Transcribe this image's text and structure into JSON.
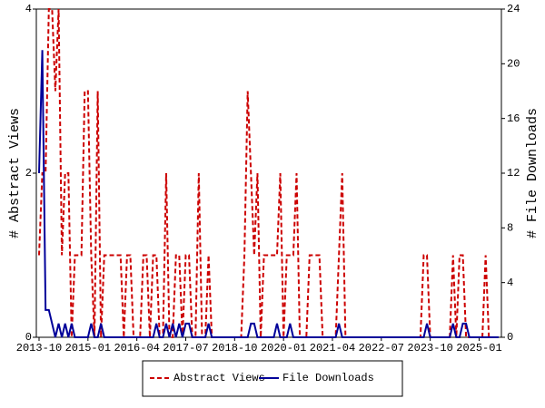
{
  "chart_data": {
    "type": "line",
    "x": [
      "2013-10",
      "2013-11",
      "2013-12",
      "2014-01",
      "2014-02",
      "2014-03",
      "2014-04",
      "2014-05",
      "2014-06",
      "2014-07",
      "2014-08",
      "2014-09",
      "2014-10",
      "2014-11",
      "2014-12",
      "2015-01",
      "2015-02",
      "2015-03",
      "2015-04",
      "2015-05",
      "2015-06",
      "2015-07",
      "2015-08",
      "2015-09",
      "2015-10",
      "2015-11",
      "2015-12",
      "2016-01",
      "2016-02",
      "2016-03",
      "2016-04",
      "2016-05",
      "2016-06",
      "2016-07",
      "2016-08",
      "2016-09",
      "2016-10",
      "2016-11",
      "2016-12",
      "2017-01",
      "2017-02",
      "2017-03",
      "2017-04",
      "2017-05",
      "2017-06",
      "2017-07",
      "2017-08",
      "2017-09",
      "2017-10",
      "2017-11",
      "2017-12",
      "2018-01",
      "2018-02",
      "2018-03",
      "2018-04",
      "2018-05",
      "2018-06",
      "2018-07",
      "2018-08",
      "2018-09",
      "2018-10",
      "2018-11",
      "2018-12",
      "2019-01",
      "2019-02",
      "2019-03",
      "2019-04",
      "2019-05",
      "2019-06",
      "2019-07",
      "2019-08",
      "2019-09",
      "2019-10",
      "2019-11",
      "2019-12",
      "2020-01",
      "2020-02",
      "2020-03",
      "2020-04",
      "2020-05",
      "2020-06",
      "2020-07",
      "2020-08",
      "2020-09",
      "2020-10",
      "2020-11",
      "2020-12",
      "2021-01",
      "2021-02",
      "2021-03",
      "2021-04",
      "2021-05",
      "2021-06",
      "2021-07",
      "2021-08",
      "2021-09",
      "2021-10",
      "2021-11",
      "2021-12",
      "2022-01",
      "2022-02",
      "2022-03",
      "2022-04",
      "2022-05",
      "2022-06",
      "2022-07",
      "2022-08",
      "2022-09",
      "2022-10",
      "2022-11",
      "2022-12",
      "2023-01",
      "2023-02",
      "2023-03",
      "2023-04",
      "2023-05",
      "2023-06",
      "2023-07",
      "2023-08",
      "2023-09",
      "2023-10",
      "2023-11",
      "2023-12",
      "2024-01",
      "2024-02",
      "2024-03",
      "2024-04",
      "2024-05",
      "2024-06",
      "2024-07",
      "2024-08",
      "2024-09",
      "2024-10",
      "2024-11",
      "2024-12",
      "2025-01",
      "2025-02",
      "2025-03",
      "2025-04",
      "2025-05",
      "2025-06",
      "2025-07"
    ],
    "xticks": [
      "2013-10",
      "2015-01",
      "2016-04",
      "2017-07",
      "2018-10",
      "2020-01",
      "2021-04",
      "2022-07",
      "2023-10",
      "2025-01"
    ],
    "ylabel": "# Abstract Views",
    "y2label": "# File Downloads",
    "ylim": [
      0,
      4
    ],
    "yticks": [
      0,
      2,
      4
    ],
    "y2lim": [
      0,
      24
    ],
    "y2ticks": [
      0,
      4,
      8,
      12,
      16,
      20,
      24
    ],
    "legend": "bottom",
    "series": [
      {
        "name": "Abstract Views",
        "color": "#cc0000",
        "dashed": true,
        "values": [
          1,
          2,
          2,
          4,
          4,
          3,
          4,
          1,
          2,
          2,
          0,
          1,
          1,
          1,
          3,
          3,
          1,
          0,
          3,
          0,
          1,
          1,
          1,
          1,
          1,
          1,
          0,
          1,
          1,
          0,
          0,
          0,
          1,
          1,
          0,
          1,
          1,
          0,
          0,
          2,
          0,
          0,
          1,
          1,
          0,
          1,
          1,
          0,
          0,
          2,
          0,
          0,
          1,
          0,
          0,
          0,
          0,
          0,
          0,
          0,
          0,
          0,
          0,
          1,
          3,
          2,
          1,
          2,
          0,
          1,
          1,
          1,
          1,
          1,
          2,
          0,
          1,
          1,
          1,
          2,
          0,
          0,
          0,
          1,
          1,
          1,
          1,
          0,
          0,
          0,
          0,
          0,
          1,
          2,
          0,
          0,
          0,
          0,
          0,
          0,
          0,
          0,
          0,
          0,
          0,
          0,
          0,
          0,
          0,
          0,
          0,
          0,
          0,
          0,
          0,
          0,
          0,
          0,
          1,
          1,
          0,
          0,
          0,
          0,
          0,
          0,
          0,
          1,
          0,
          1,
          1,
          0,
          0,
          0,
          0,
          0,
          0,
          1,
          0,
          0,
          0,
          0
        ]
      },
      {
        "name": "File Downloads",
        "color": "#000099",
        "axis": "y2",
        "values": [
          12,
          21,
          2,
          2,
          1,
          0,
          1,
          0,
          1,
          0,
          1,
          0,
          0,
          0,
          0,
          0,
          1,
          0,
          0,
          1,
          0,
          0,
          0,
          0,
          0,
          0,
          0,
          0,
          0,
          0,
          0,
          0,
          0,
          0,
          0,
          0,
          1,
          0,
          0,
          1,
          0,
          1,
          0,
          1,
          0,
          1,
          1,
          0,
          0,
          0,
          0,
          0,
          1,
          0,
          0,
          0,
          0,
          0,
          0,
          0,
          0,
          0,
          0,
          0,
          0,
          1,
          1,
          0,
          0,
          0,
          0,
          0,
          0,
          1,
          0,
          0,
          0,
          1,
          0,
          0,
          0,
          0,
          0,
          0,
          0,
          0,
          0,
          0,
          0,
          0,
          0,
          0,
          1,
          0,
          0,
          0,
          0,
          0,
          0,
          0,
          0,
          0,
          0,
          0,
          0,
          0,
          0,
          0,
          0,
          0,
          0,
          0,
          0,
          0,
          0,
          0,
          0,
          0,
          0,
          1,
          0,
          0,
          0,
          0,
          0,
          0,
          0,
          1,
          0,
          0,
          1,
          1,
          0,
          0,
          0,
          0,
          0,
          0,
          0,
          0,
          0,
          0
        ]
      }
    ]
  }
}
